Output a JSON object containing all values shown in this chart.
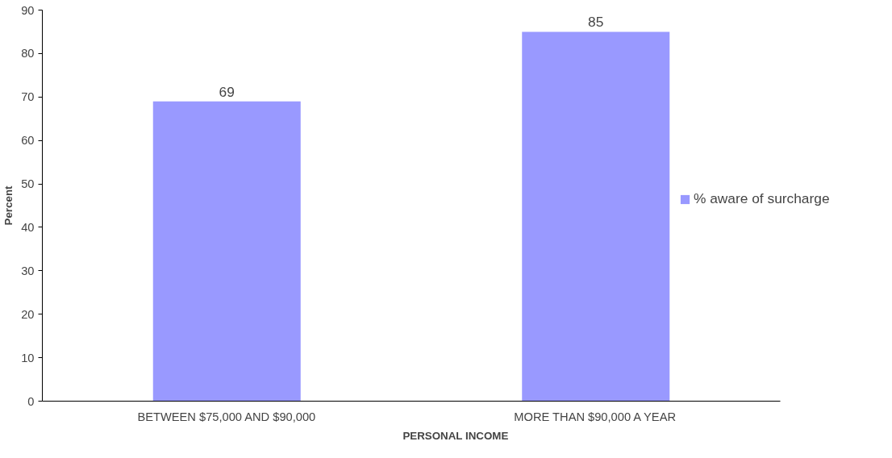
{
  "chart_data": {
    "type": "bar",
    "xlabel": "PERSONAL INCOME",
    "ylabel": "Percent",
    "categories": [
      "BETWEEN $75,000 AND $90,000",
      "MORE THAN $90,000 A YEAR"
    ],
    "series": [
      {
        "name": "% aware of surcharge",
        "color": "#9999ff",
        "values": [
          69,
          85
        ]
      }
    ],
    "ylim": [
      0,
      90
    ],
    "yticks": [
      0,
      10,
      20,
      30,
      40,
      50,
      60,
      70,
      80,
      90
    ],
    "data_labels": true,
    "grid": false,
    "legend": "right"
  }
}
